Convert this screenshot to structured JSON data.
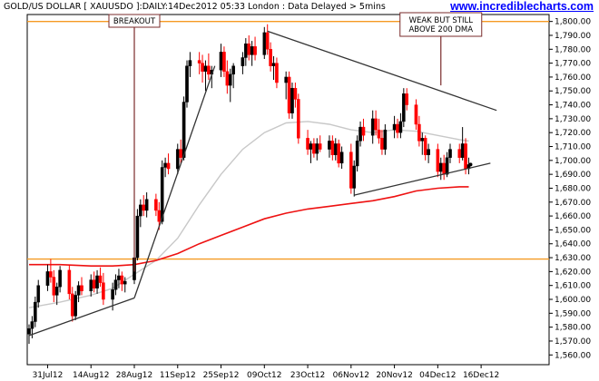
{
  "header": {
    "title": "GOLD/US DOLLAR [ XAUUSDO ]:DAILY:14Dec2012 05:33 London : Data Delayed > 5mins",
    "brand": "www.incrediblecharts.com"
  },
  "chart_data": {
    "type": "candlestick",
    "x_tick_labels": [
      "31Jul12",
      "14Aug12",
      "28Aug12",
      "11Sep12",
      "25Sep12",
      "09Oct12",
      "23Oct12",
      "06Nov12",
      "20Nov12",
      "04Dec12",
      "16Dec12"
    ],
    "y_tick_labels": [
      "1,560.00",
      "1,570.00",
      "1,580.00",
      "1,590.00",
      "1,600.00",
      "1,610.00",
      "1,620.00",
      "1,630.00",
      "1,640.00",
      "1,650.00",
      "1,660.00",
      "1,670.00",
      "1,680.00",
      "1,690.00",
      "1,700.00",
      "1,710.00",
      "1,720.00",
      "1,730.00",
      "1,740.00",
      "1,750.00",
      "1,760.00",
      "1,770.00",
      "1,780.00",
      "1,790.00",
      "1,800.00"
    ],
    "ylim": [
      1553,
      1805
    ],
    "x_range_days": [
      0,
      160
    ],
    "x_tick_days": [
      6,
      20,
      34,
      48,
      62,
      76,
      90,
      104,
      118,
      132,
      146
    ],
    "annotations": [
      {
        "label": "BREAKOUT",
        "x_day": 34,
        "y_value": 1620
      },
      {
        "label_lines": [
          "WEAK BUT STILL",
          "ABOVE 200 DMA"
        ],
        "x_day": 133,
        "y_value": 1754
      }
    ],
    "horizontal_lines": [
      {
        "y": 1800,
        "color": "#f59a23"
      },
      {
        "y": 1629,
        "color": "#f59a23"
      }
    ],
    "trendlines": [
      {
        "points": [
          [
            0,
            1574
          ],
          [
            34,
            1601
          ]
        ]
      },
      {
        "points": [
          [
            34,
            1601
          ],
          [
            60,
            1768
          ]
        ]
      },
      {
        "points": [
          [
            77,
            1793
          ],
          [
            151,
            1736
          ]
        ]
      },
      {
        "points": [
          [
            105,
            1675
          ],
          [
            149,
            1698
          ]
        ]
      }
    ],
    "series": [
      {
        "name": "candles",
        "up_color": "#000000",
        "down_color": "#ff0000",
        "ohlc": [
          {
            "d": 0,
            "o": 1575,
            "h": 1582,
            "l": 1568,
            "c": 1579
          },
          {
            "d": 1,
            "o": 1579,
            "h": 1588,
            "l": 1572,
            "c": 1584
          },
          {
            "d": 2,
            "o": 1584,
            "h": 1602,
            "l": 1580,
            "c": 1598
          },
          {
            "d": 3,
            "o": 1598,
            "h": 1614,
            "l": 1594,
            "c": 1610
          },
          {
            "d": 6,
            "o": 1610,
            "h": 1625,
            "l": 1606,
            "c": 1620
          },
          {
            "d": 7,
            "o": 1620,
            "h": 1629,
            "l": 1612,
            "c": 1616
          },
          {
            "d": 8,
            "o": 1616,
            "h": 1621,
            "l": 1598,
            "c": 1603
          },
          {
            "d": 9,
            "o": 1603,
            "h": 1612,
            "l": 1596,
            "c": 1609
          },
          {
            "d": 10,
            "o": 1609,
            "h": 1624,
            "l": 1605,
            "c": 1621
          },
          {
            "d": 13,
            "o": 1621,
            "h": 1625,
            "l": 1600,
            "c": 1604
          },
          {
            "d": 14,
            "o": 1604,
            "h": 1609,
            "l": 1584,
            "c": 1588
          },
          {
            "d": 15,
            "o": 1588,
            "h": 1606,
            "l": 1585,
            "c": 1603
          },
          {
            "d": 16,
            "o": 1603,
            "h": 1613,
            "l": 1598,
            "c": 1610
          },
          {
            "d": 17,
            "o": 1610,
            "h": 1616,
            "l": 1603,
            "c": 1606
          },
          {
            "d": 20,
            "o": 1606,
            "h": 1618,
            "l": 1602,
            "c": 1614
          },
          {
            "d": 21,
            "o": 1614,
            "h": 1620,
            "l": 1605,
            "c": 1608
          },
          {
            "d": 22,
            "o": 1608,
            "h": 1621,
            "l": 1604,
            "c": 1617
          },
          {
            "d": 23,
            "o": 1617,
            "h": 1623,
            "l": 1609,
            "c": 1612
          },
          {
            "d": 24,
            "o": 1612,
            "h": 1619,
            "l": 1596,
            "c": 1600
          },
          {
            "d": 27,
            "o": 1600,
            "h": 1612,
            "l": 1592,
            "c": 1607
          },
          {
            "d": 28,
            "o": 1607,
            "h": 1618,
            "l": 1603,
            "c": 1614
          },
          {
            "d": 29,
            "o": 1614,
            "h": 1622,
            "l": 1608,
            "c": 1617
          },
          {
            "d": 30,
            "o": 1617,
            "h": 1620,
            "l": 1606,
            "c": 1611
          },
          {
            "d": 31,
            "o": 1611,
            "h": 1616,
            "l": 1605,
            "c": 1613
          },
          {
            "d": 34,
            "o": 1614,
            "h": 1634,
            "l": 1611,
            "c": 1630
          },
          {
            "d": 35,
            "o": 1630,
            "h": 1665,
            "l": 1628,
            "c": 1660
          },
          {
            "d": 36,
            "o": 1660,
            "h": 1672,
            "l": 1652,
            "c": 1668
          },
          {
            "d": 37,
            "o": 1668,
            "h": 1675,
            "l": 1660,
            "c": 1664
          },
          {
            "d": 38,
            "o": 1664,
            "h": 1677,
            "l": 1659,
            "c": 1672
          },
          {
            "d": 41,
            "o": 1672,
            "h": 1676,
            "l": 1660,
            "c": 1664
          },
          {
            "d": 42,
            "o": 1664,
            "h": 1670,
            "l": 1650,
            "c": 1656
          },
          {
            "d": 43,
            "o": 1656,
            "h": 1700,
            "l": 1654,
            "c": 1695
          },
          {
            "d": 44,
            "o": 1695,
            "h": 1702,
            "l": 1688,
            "c": 1698
          },
          {
            "d": 45,
            "o": 1698,
            "h": 1705,
            "l": 1690,
            "c": 1694
          },
          {
            "d": 48,
            "o": 1694,
            "h": 1712,
            "l": 1690,
            "c": 1708
          },
          {
            "d": 49,
            "o": 1708,
            "h": 1715,
            "l": 1698,
            "c": 1702
          },
          {
            "d": 50,
            "o": 1702,
            "h": 1746,
            "l": 1700,
            "c": 1742
          },
          {
            "d": 51,
            "o": 1742,
            "h": 1772,
            "l": 1738,
            "c": 1768
          },
          {
            "d": 52,
            "o": 1768,
            "h": 1778,
            "l": 1760,
            "c": 1772
          },
          {
            "d": 55,
            "o": 1772,
            "h": 1778,
            "l": 1762,
            "c": 1770
          },
          {
            "d": 56,
            "o": 1770,
            "h": 1776,
            "l": 1756,
            "c": 1764
          },
          {
            "d": 57,
            "o": 1764,
            "h": 1772,
            "l": 1750,
            "c": 1768
          },
          {
            "d": 58,
            "o": 1768,
            "h": 1777,
            "l": 1758,
            "c": 1762
          },
          {
            "d": 59,
            "o": 1762,
            "h": 1768,
            "l": 1752,
            "c": 1765
          },
          {
            "d": 62,
            "o": 1765,
            "h": 1784,
            "l": 1760,
            "c": 1778
          },
          {
            "d": 63,
            "o": 1778,
            "h": 1782,
            "l": 1760,
            "c": 1764
          },
          {
            "d": 64,
            "o": 1764,
            "h": 1772,
            "l": 1748,
            "c": 1754
          },
          {
            "d": 65,
            "o": 1754,
            "h": 1766,
            "l": 1742,
            "c": 1762
          },
          {
            "d": 66,
            "o": 1762,
            "h": 1770,
            "l": 1752,
            "c": 1768
          },
          {
            "d": 69,
            "o": 1768,
            "h": 1778,
            "l": 1762,
            "c": 1774
          },
          {
            "d": 70,
            "o": 1774,
            "h": 1788,
            "l": 1768,
            "c": 1784
          },
          {
            "d": 71,
            "o": 1784,
            "h": 1790,
            "l": 1772,
            "c": 1776
          },
          {
            "d": 72,
            "o": 1776,
            "h": 1786,
            "l": 1768,
            "c": 1782
          },
          {
            "d": 73,
            "o": 1782,
            "h": 1789,
            "l": 1772,
            "c": 1776
          },
          {
            "d": 76,
            "o": 1776,
            "h": 1796,
            "l": 1773,
            "c": 1792
          },
          {
            "d": 77,
            "o": 1792,
            "h": 1798,
            "l": 1776,
            "c": 1780
          },
          {
            "d": 78,
            "o": 1780,
            "h": 1785,
            "l": 1764,
            "c": 1768
          },
          {
            "d": 79,
            "o": 1768,
            "h": 1775,
            "l": 1758,
            "c": 1770
          },
          {
            "d": 80,
            "o": 1770,
            "h": 1774,
            "l": 1752,
            "c": 1756
          },
          {
            "d": 83,
            "o": 1756,
            "h": 1764,
            "l": 1744,
            "c": 1760
          },
          {
            "d": 84,
            "o": 1760,
            "h": 1764,
            "l": 1730,
            "c": 1734
          },
          {
            "d": 85,
            "o": 1734,
            "h": 1756,
            "l": 1730,
            "c": 1752
          },
          {
            "d": 86,
            "o": 1752,
            "h": 1756,
            "l": 1738,
            "c": 1744
          },
          {
            "d": 87,
            "o": 1744,
            "h": 1748,
            "l": 1712,
            "c": 1716
          },
          {
            "d": 90,
            "o": 1716,
            "h": 1722,
            "l": 1704,
            "c": 1708
          },
          {
            "d": 91,
            "o": 1708,
            "h": 1714,
            "l": 1698,
            "c": 1712
          },
          {
            "d": 92,
            "o": 1712,
            "h": 1716,
            "l": 1702,
            "c": 1705
          },
          {
            "d": 93,
            "o": 1705,
            "h": 1716,
            "l": 1700,
            "c": 1712
          },
          {
            "d": 94,
            "o": 1712,
            "h": 1718,
            "l": 1706,
            "c": 1708
          },
          {
            "d": 97,
            "o": 1708,
            "h": 1718,
            "l": 1702,
            "c": 1714
          },
          {
            "d": 98,
            "o": 1714,
            "h": 1718,
            "l": 1700,
            "c": 1704
          },
          {
            "d": 99,
            "o": 1704,
            "h": 1716,
            "l": 1700,
            "c": 1712
          },
          {
            "d": 100,
            "o": 1712,
            "h": 1715,
            "l": 1695,
            "c": 1698
          },
          {
            "d": 101,
            "o": 1698,
            "h": 1710,
            "l": 1694,
            "c": 1706
          },
          {
            "d": 104,
            "o": 1706,
            "h": 1712,
            "l": 1676,
            "c": 1680
          },
          {
            "d": 105,
            "o": 1680,
            "h": 1700,
            "l": 1674,
            "c": 1696
          },
          {
            "d": 106,
            "o": 1696,
            "h": 1718,
            "l": 1692,
            "c": 1714
          },
          {
            "d": 107,
            "o": 1714,
            "h": 1728,
            "l": 1710,
            "c": 1724
          },
          {
            "d": 108,
            "o": 1724,
            "h": 1730,
            "l": 1714,
            "c": 1718
          },
          {
            "d": 111,
            "o": 1718,
            "h": 1736,
            "l": 1712,
            "c": 1730
          },
          {
            "d": 112,
            "o": 1730,
            "h": 1736,
            "l": 1718,
            "c": 1722
          },
          {
            "d": 113,
            "o": 1722,
            "h": 1730,
            "l": 1712,
            "c": 1716
          },
          {
            "d": 114,
            "o": 1716,
            "h": 1722,
            "l": 1704,
            "c": 1708
          },
          {
            "d": 115,
            "o": 1708,
            "h": 1726,
            "l": 1704,
            "c": 1722
          },
          {
            "d": 118,
            "o": 1722,
            "h": 1732,
            "l": 1716,
            "c": 1726
          },
          {
            "d": 119,
            "o": 1726,
            "h": 1730,
            "l": 1716,
            "c": 1720
          },
          {
            "d": 120,
            "o": 1720,
            "h": 1734,
            "l": 1716,
            "c": 1728
          },
          {
            "d": 121,
            "o": 1728,
            "h": 1752,
            "l": 1724,
            "c": 1748
          },
          {
            "d": 122,
            "o": 1748,
            "h": 1752,
            "l": 1736,
            "c": 1740
          },
          {
            "d": 125,
            "o": 1740,
            "h": 1744,
            "l": 1722,
            "c": 1726
          },
          {
            "d": 126,
            "o": 1726,
            "h": 1732,
            "l": 1710,
            "c": 1714
          },
          {
            "d": 127,
            "o": 1714,
            "h": 1720,
            "l": 1704,
            "c": 1716
          },
          {
            "d": 128,
            "o": 1716,
            "h": 1718,
            "l": 1700,
            "c": 1704
          },
          {
            "d": 129,
            "o": 1704,
            "h": 1712,
            "l": 1698,
            "c": 1708
          },
          {
            "d": 132,
            "o": 1708,
            "h": 1712,
            "l": 1688,
            "c": 1692
          },
          {
            "d": 133,
            "o": 1692,
            "h": 1702,
            "l": 1686,
            "c": 1698
          },
          {
            "d": 134,
            "o": 1698,
            "h": 1704,
            "l": 1686,
            "c": 1690
          },
          {
            "d": 135,
            "o": 1690,
            "h": 1706,
            "l": 1688,
            "c": 1702
          },
          {
            "d": 136,
            "o": 1702,
            "h": 1712,
            "l": 1698,
            "c": 1708
          },
          {
            "d": 139,
            "o": 1708,
            "h": 1712,
            "l": 1698,
            "c": 1702
          },
          {
            "d": 140,
            "o": 1702,
            "h": 1724,
            "l": 1700,
            "c": 1712
          },
          {
            "d": 141,
            "o": 1712,
            "h": 1716,
            "l": 1690,
            "c": 1694
          },
          {
            "d": 142,
            "o": 1694,
            "h": 1702,
            "l": 1690,
            "c": 1697
          }
        ]
      },
      {
        "name": "MA",
        "color": "#c8c8c8",
        "points": [
          [
            0,
            1594
          ],
          [
            10,
            1598
          ],
          [
            20,
            1603
          ],
          [
            27,
            1608
          ],
          [
            34,
            1618
          ],
          [
            41,
            1628
          ],
          [
            48,
            1644
          ],
          [
            55,
            1668
          ],
          [
            62,
            1690
          ],
          [
            69,
            1708
          ],
          [
            76,
            1720
          ],
          [
            83,
            1727
          ],
          [
            90,
            1728
          ],
          [
            97,
            1726
          ],
          [
            104,
            1722
          ],
          [
            111,
            1720
          ],
          [
            118,
            1722
          ],
          [
            125,
            1721
          ],
          [
            132,
            1718
          ],
          [
            139,
            1715
          ],
          [
            142,
            1714
          ]
        ]
      },
      {
        "name": "MA",
        "color": "#ee1111",
        "points": [
          [
            0,
            1625
          ],
          [
            10,
            1625
          ],
          [
            20,
            1624
          ],
          [
            27,
            1624
          ],
          [
            34,
            1625
          ],
          [
            41,
            1628
          ],
          [
            48,
            1633
          ],
          [
            55,
            1640
          ],
          [
            62,
            1646
          ],
          [
            69,
            1652
          ],
          [
            76,
            1658
          ],
          [
            83,
            1662
          ],
          [
            90,
            1665
          ],
          [
            97,
            1667
          ],
          [
            104,
            1669
          ],
          [
            111,
            1671
          ],
          [
            118,
            1674
          ],
          [
            125,
            1678
          ],
          [
            132,
            1680
          ],
          [
            139,
            1681
          ],
          [
            142,
            1681
          ]
        ]
      }
    ]
  }
}
